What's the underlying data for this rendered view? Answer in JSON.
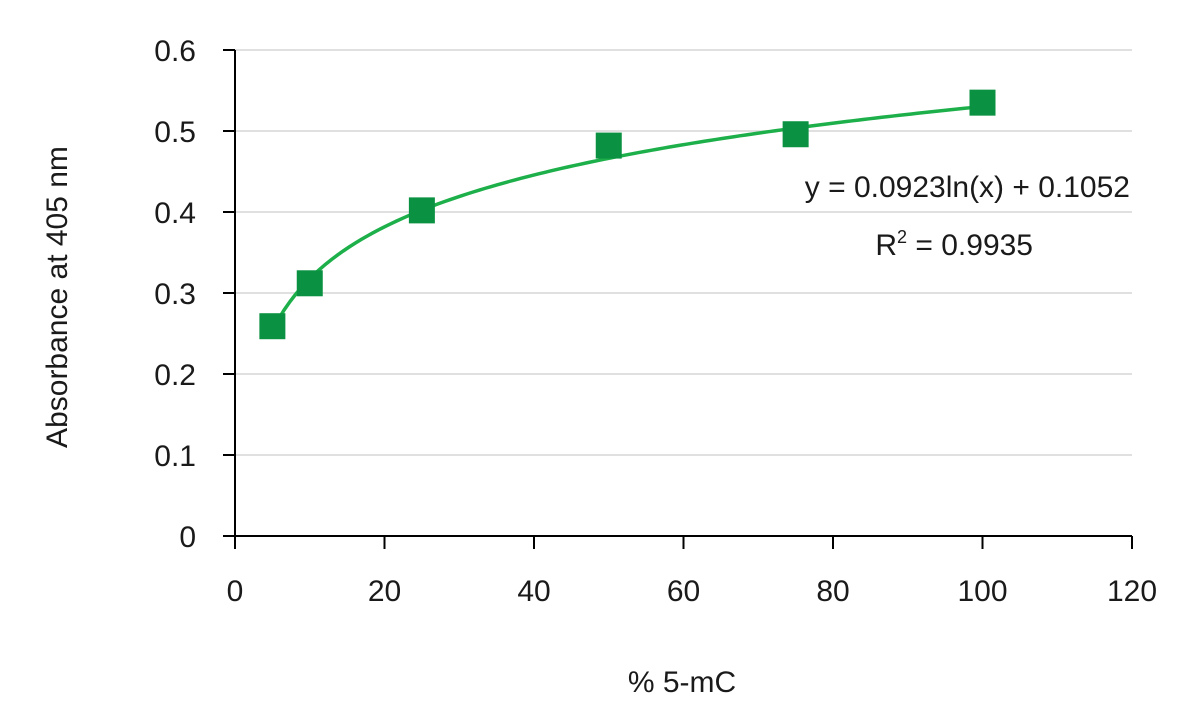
{
  "chart_data": {
    "type": "scatter",
    "xlabel": "% 5-mC",
    "ylabel": "Absorbance at 405 nm",
    "xlim": [
      0,
      120
    ],
    "ylim": [
      0,
      0.6
    ],
    "x_ticks": [
      "0",
      "20",
      "40",
      "60",
      "80",
      "100",
      "120"
    ],
    "y_ticks": [
      "0",
      "0.1",
      "0.2",
      "0.3",
      "0.4",
      "0.5",
      "0.6"
    ],
    "grid": "horizontal",
    "series": [
      {
        "marker": "square",
        "color": "#0a9141",
        "points": [
          {
            "x": 5,
            "y": 0.259
          },
          {
            "x": 10,
            "y": 0.312
          },
          {
            "x": 25,
            "y": 0.402
          },
          {
            "x": 50,
            "y": 0.482
          },
          {
            "x": 75,
            "y": 0.496
          },
          {
            "x": 100,
            "y": 0.535
          }
        ]
      }
    ],
    "trendline": {
      "type": "logarithmic",
      "a": 0.0923,
      "b": 0.1052,
      "x_range": [
        5,
        100
      ],
      "color": "#1db04a"
    },
    "annotations": {
      "equation": "y = 0.0923ln(x) + 0.1052",
      "r2_base": "R",
      "r2_sup": "2",
      "r2_value": " = 0.9935"
    }
  }
}
